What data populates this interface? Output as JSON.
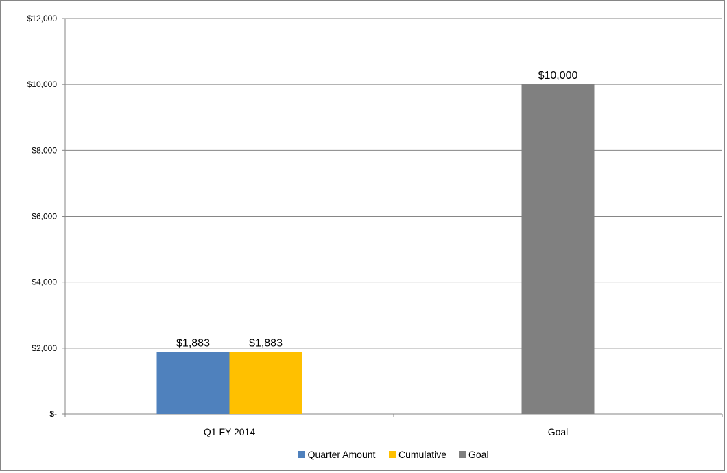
{
  "chart_data": {
    "type": "bar",
    "title": "",
    "xlabel": "",
    "ylabel": "",
    "ylim": [
      0,
      12000
    ],
    "y_tick_values": [
      0,
      2000,
      4000,
      6000,
      8000,
      10000,
      12000
    ],
    "y_tick_labels": [
      "$-",
      "$2,000",
      "$4,000",
      "$6,000",
      "$8,000",
      "$10,000",
      "$12,000"
    ],
    "categories": [
      "Q1 FY 2014",
      "Goal"
    ],
    "series": [
      {
        "name": "Quarter Amount",
        "color": "#4F81BD",
        "values": [
          1883,
          null
        ],
        "labels": [
          "$1,883",
          ""
        ]
      },
      {
        "name": "Cumulative",
        "color": "#FFC000",
        "values": [
          1883,
          null
        ],
        "labels": [
          "$1,883",
          ""
        ]
      },
      {
        "name": "Goal",
        "color": "#808080",
        "values": [
          null,
          10000
        ],
        "labels": [
          "",
          "$10,000"
        ]
      }
    ],
    "grid": true,
    "legend_position": "bottom"
  }
}
